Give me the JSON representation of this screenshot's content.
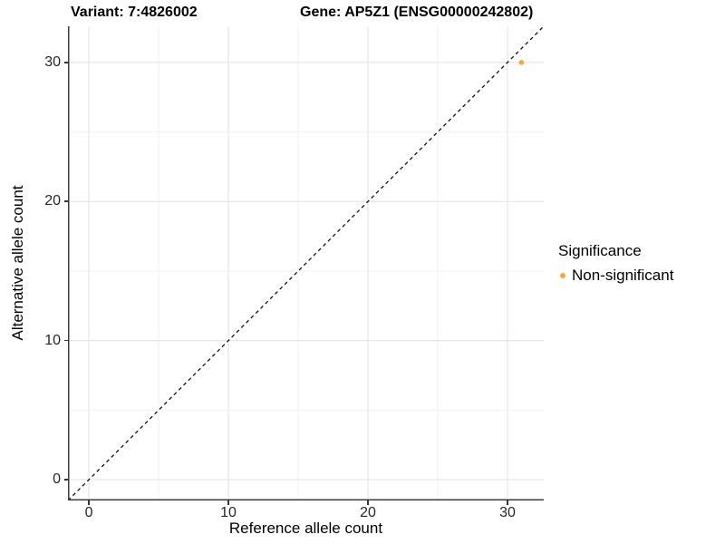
{
  "figure": {
    "titles": {
      "variant": "Variant: 7:4826002",
      "gene": "Gene: AP5Z1 (ENSG00000242802)"
    }
  },
  "chart_data": {
    "type": "scatter",
    "title": "Variant: 7:4826002 | Gene: AP5Z1 (ENSG00000242802)",
    "xlabel": "Reference allele count",
    "ylabel": "Alternative allele count",
    "xlim": [
      -1.5,
      32.6
    ],
    "ylim": [
      -1.5,
      32.6
    ],
    "xticks": [
      0,
      10,
      20,
      30
    ],
    "yticks": [
      0,
      10,
      20,
      30
    ],
    "xticks_minor": [
      5,
      15,
      25
    ],
    "yticks_minor": [
      5,
      15,
      25
    ],
    "grid": "major+minor",
    "equal_aspect": true,
    "identity_line": {
      "style": "dashed",
      "from": [
        -1.5,
        -1.5
      ],
      "to": [
        32.6,
        32.6
      ],
      "color": "#111111"
    },
    "points": [
      {
        "x": 31,
        "y": 30,
        "series": "Non-significant"
      }
    ],
    "legend": {
      "position": "right",
      "title": "Significance",
      "entries": [
        {
          "label": "Non-significant",
          "color": "#F9A33C",
          "marker": "circle"
        }
      ]
    },
    "colors": {
      "point": "#F9A33C",
      "grid_major": "#E6E6E6",
      "grid_minor": "#F1F1F1",
      "axis_line": "#3C3C3C",
      "tick_mark": "#333333"
    }
  }
}
